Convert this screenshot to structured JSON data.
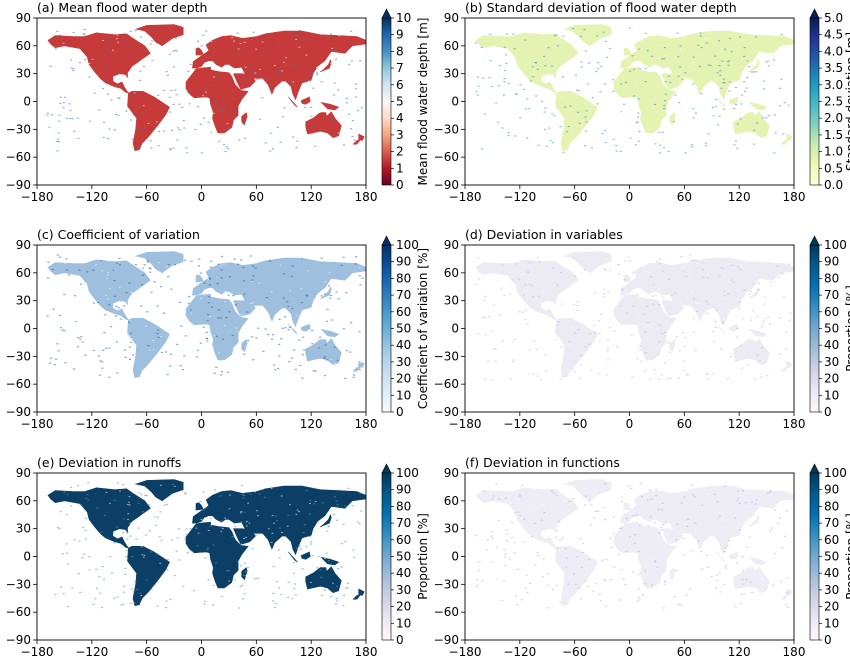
{
  "lon_ticks": [
    "−180",
    "−120",
    "−60",
    "0",
    "60",
    "120",
    "180"
  ],
  "lat_ticks": [
    "90",
    "60",
    "30",
    "0",
    "−30",
    "−60",
    "−90"
  ],
  "panels": [
    {
      "id": "a",
      "title": "(a) Mean flood water depth",
      "colorbar": {
        "label": "Mean flood water depth [m]",
        "ticks": [
          "0",
          "1",
          "2",
          "3",
          "4",
          "5",
          "6",
          "7",
          "8",
          "9",
          "10"
        ],
        "colormap": [
          "#67001f",
          "#b2182b",
          "#d6604d",
          "#f4a582",
          "#fddbc7",
          "#f7f7f7",
          "#d1e5f0",
          "#92c5de",
          "#4393c3",
          "#2166ac",
          "#053061"
        ]
      },
      "land_color": "#c63a3a",
      "highlight_color": "#3f78b4"
    },
    {
      "id": "b",
      "title": "(b) Standard deviation of flood water depth",
      "colorbar": {
        "label": "Standard deviation [m]",
        "ticks": [
          "0.0",
          "0.5",
          "1.0",
          "1.5",
          "2.0",
          "2.5",
          "3.0",
          "3.5",
          "4.0",
          "4.5",
          "5.0"
        ],
        "colormap": [
          "#ffffd9",
          "#edf8b1",
          "#c7e9b4",
          "#7fcdbb",
          "#41b6c4",
          "#1d91c0",
          "#225ea8",
          "#253494",
          "#081d58"
        ]
      },
      "land_color": "#e4f2b2",
      "highlight_color": "#3a8fbf"
    },
    {
      "id": "c",
      "title": "(c) Coefficient of variation",
      "colorbar": {
        "label": "Coefficient of variation [%]",
        "ticks": [
          "0",
          "10",
          "20",
          "30",
          "40",
          "50",
          "60",
          "70",
          "80",
          "90",
          "100"
        ],
        "colormap": [
          "#f7fbff",
          "#deebf7",
          "#c6dbef",
          "#9ecae1",
          "#6baed6",
          "#4292c6",
          "#2171b5",
          "#08519c",
          "#08306b"
        ]
      },
      "land_color": "#9fbfde",
      "highlight_color": "#2a5f8f"
    },
    {
      "id": "d",
      "title": "(d) Deviation in variables",
      "colorbar": {
        "label": "Proportion [%]",
        "ticks": [
          "0",
          "10",
          "20",
          "30",
          "40",
          "50",
          "60",
          "70",
          "80",
          "90",
          "100"
        ],
        "colormap": [
          "#fff7fb",
          "#ece7f2",
          "#d0d1e6",
          "#a6bddb",
          "#74a9cf",
          "#3690c0",
          "#0570b0",
          "#045a8d",
          "#023858"
        ]
      },
      "land_color": "#ecebf3",
      "highlight_color": "#b7c0dc"
    },
    {
      "id": "e",
      "title": "(e) Deviation in runoffs",
      "colorbar": {
        "label": "Proportion [%]",
        "ticks": [
          "0",
          "10",
          "20",
          "30",
          "40",
          "50",
          "60",
          "70",
          "80",
          "90",
          "100"
        ],
        "colormap": [
          "#fff7fb",
          "#ece7f2",
          "#d0d1e6",
          "#a6bddb",
          "#74a9cf",
          "#3690c0",
          "#0570b0",
          "#045a8d",
          "#023858"
        ]
      },
      "land_color": "#0b3f66",
      "highlight_color": "#5f8fb8"
    },
    {
      "id": "f",
      "title": "(f) Deviation in functions",
      "colorbar": {
        "label": "Proportion [%]",
        "ticks": [
          "0",
          "10",
          "20",
          "30",
          "40",
          "50",
          "60",
          "70",
          "80",
          "90",
          "100"
        ],
        "colormap": [
          "#fff7fb",
          "#ece7f2",
          "#d0d1e6",
          "#a6bddb",
          "#74a9cf",
          "#3690c0",
          "#0570b0",
          "#045a8d",
          "#023858"
        ]
      },
      "land_color": "#eeecf4",
      "highlight_color": "#aab8da"
    }
  ]
}
